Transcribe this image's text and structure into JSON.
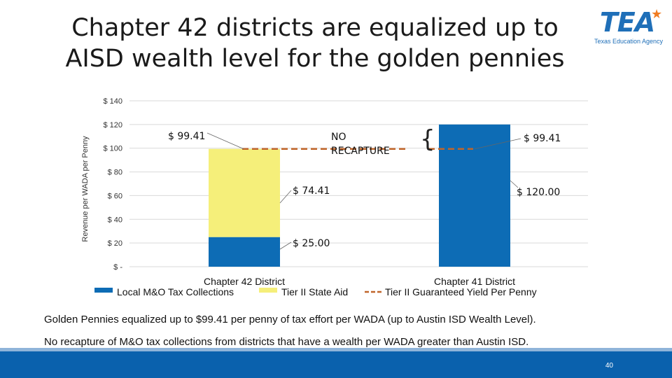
{
  "title_line1": "Chapter 42 districts are equalized up to",
  "title_line2": "AISD wealth level for the golden pennies",
  "logo": {
    "text": "TEA",
    "subtitle": "Texas Education Agency"
  },
  "chart_data": {
    "type": "bar",
    "stacked": true,
    "categories": [
      "Chapter 42 District",
      "Chapter 41 District"
    ],
    "ylabel": "Revenue per WADA per Penny",
    "ylim": [
      0,
      140
    ],
    "yticks": [
      "$ -",
      "$ 20",
      "$ 40",
      "$ 60",
      "$ 80",
      "$ 100",
      "$ 120",
      "$ 140"
    ],
    "yvalues": [
      0,
      20,
      40,
      60,
      80,
      100,
      120,
      140
    ],
    "grid": true,
    "legend_placement": "bottom",
    "series": [
      {
        "name": "Local M&O Tax Collections",
        "values": [
          25.0,
          120.0
        ],
        "color": "#0d6cb5"
      },
      {
        "name": "Tier II State Aid",
        "values": [
          74.41,
          0
        ],
        "color": "#f5ef7a"
      }
    ],
    "line_series": {
      "name": "Tier II Guaranteed Yield Per Penny",
      "value": 99.41,
      "color": "#c0652a"
    },
    "labels": {
      "c42_total": "$ 99.41",
      "c42_state": "$ 74.41",
      "c42_local": "$ 25.00",
      "c41_yield": "$ 99.41",
      "c41_local": "$ 120.00",
      "no_recapture": [
        "NO",
        "RECAPTURE"
      ]
    }
  },
  "notes": [
    "Golden Pennies equalized up to $99.41 per penny of tax effort per WADA (up to Austin ISD Wealth Level).",
    "No recapture of M&O tax collections from districts that have a wealth per WADA greater than Austin ISD."
  ],
  "page_number": "40"
}
